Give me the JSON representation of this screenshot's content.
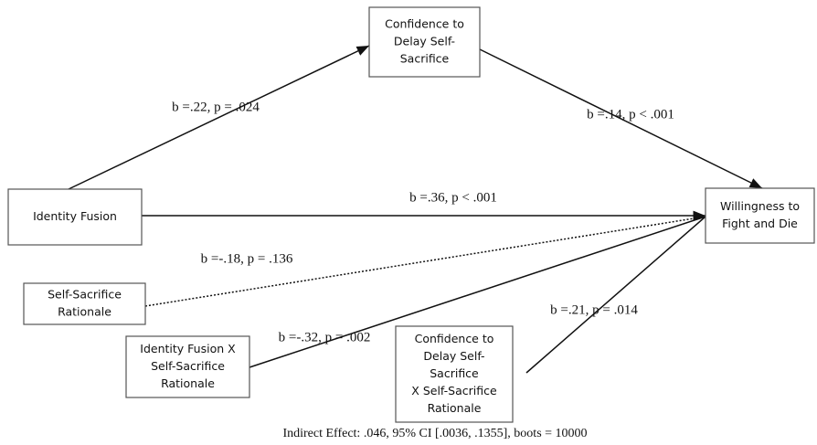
{
  "nodes": [
    {
      "lines": [
        "Confidence to",
        "Delay Self-",
        "Sacrifice"
      ]
    },
    {
      "lines": [
        "Identity Fusion"
      ]
    },
    {
      "lines": [
        "Willingness to",
        "Fight and Die"
      ]
    },
    {
      "lines": [
        "Self-Sacrifice",
        "Rationale"
      ]
    },
    {
      "lines": [
        "Identity Fusion X",
        "Self-Sacrifice",
        "Rationale"
      ]
    },
    {
      "lines": [
        "Confidence to",
        "Delay Self-",
        "Sacrifice",
        "X Self-Sacrifice",
        "Rationale"
      ]
    }
  ],
  "edges": [
    {
      "label": "b =.22, p = .024"
    },
    {
      "label": "b =.14, p < .001"
    },
    {
      "label": "b =.36, p < .001"
    },
    {
      "label": "b =-.18, p = .136"
    },
    {
      "label": "b =-.32, p = .002"
    },
    {
      "label": "b =.21, p = .014"
    }
  ],
  "footer": "Indirect Effect: .046, 95% CI [.0036, .1355], boots = 10000"
}
